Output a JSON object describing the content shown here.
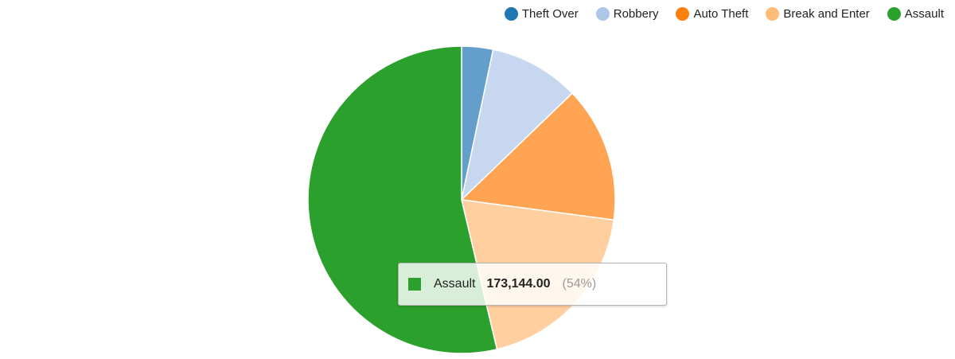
{
  "chart_data": {
    "type": "pie",
    "title": "",
    "legend_position": "top-right",
    "slices": [
      {
        "name": "Theft Over",
        "percent": 3.3,
        "color": "#1f77b4",
        "fill": "#649fcb"
      },
      {
        "name": "Robbery",
        "percent": 9.5,
        "color": "#aec7e8",
        "fill": "#c6d7ef"
      },
      {
        "name": "Auto Theft",
        "percent": 14.3,
        "color": "#ff7f0e",
        "fill": "#ffa453"
      },
      {
        "name": "Break and Enter",
        "percent": 19.2,
        "color": "#ffbb78",
        "fill": "#ffcfa0"
      },
      {
        "name": "Assault",
        "percent": 53.7,
        "color": "#2ca02c",
        "fill": "#2ca02c"
      }
    ]
  },
  "tooltip": {
    "label": "Assault",
    "value": "173,144.00",
    "percent": "(54%)",
    "color": "#2ca02c"
  }
}
